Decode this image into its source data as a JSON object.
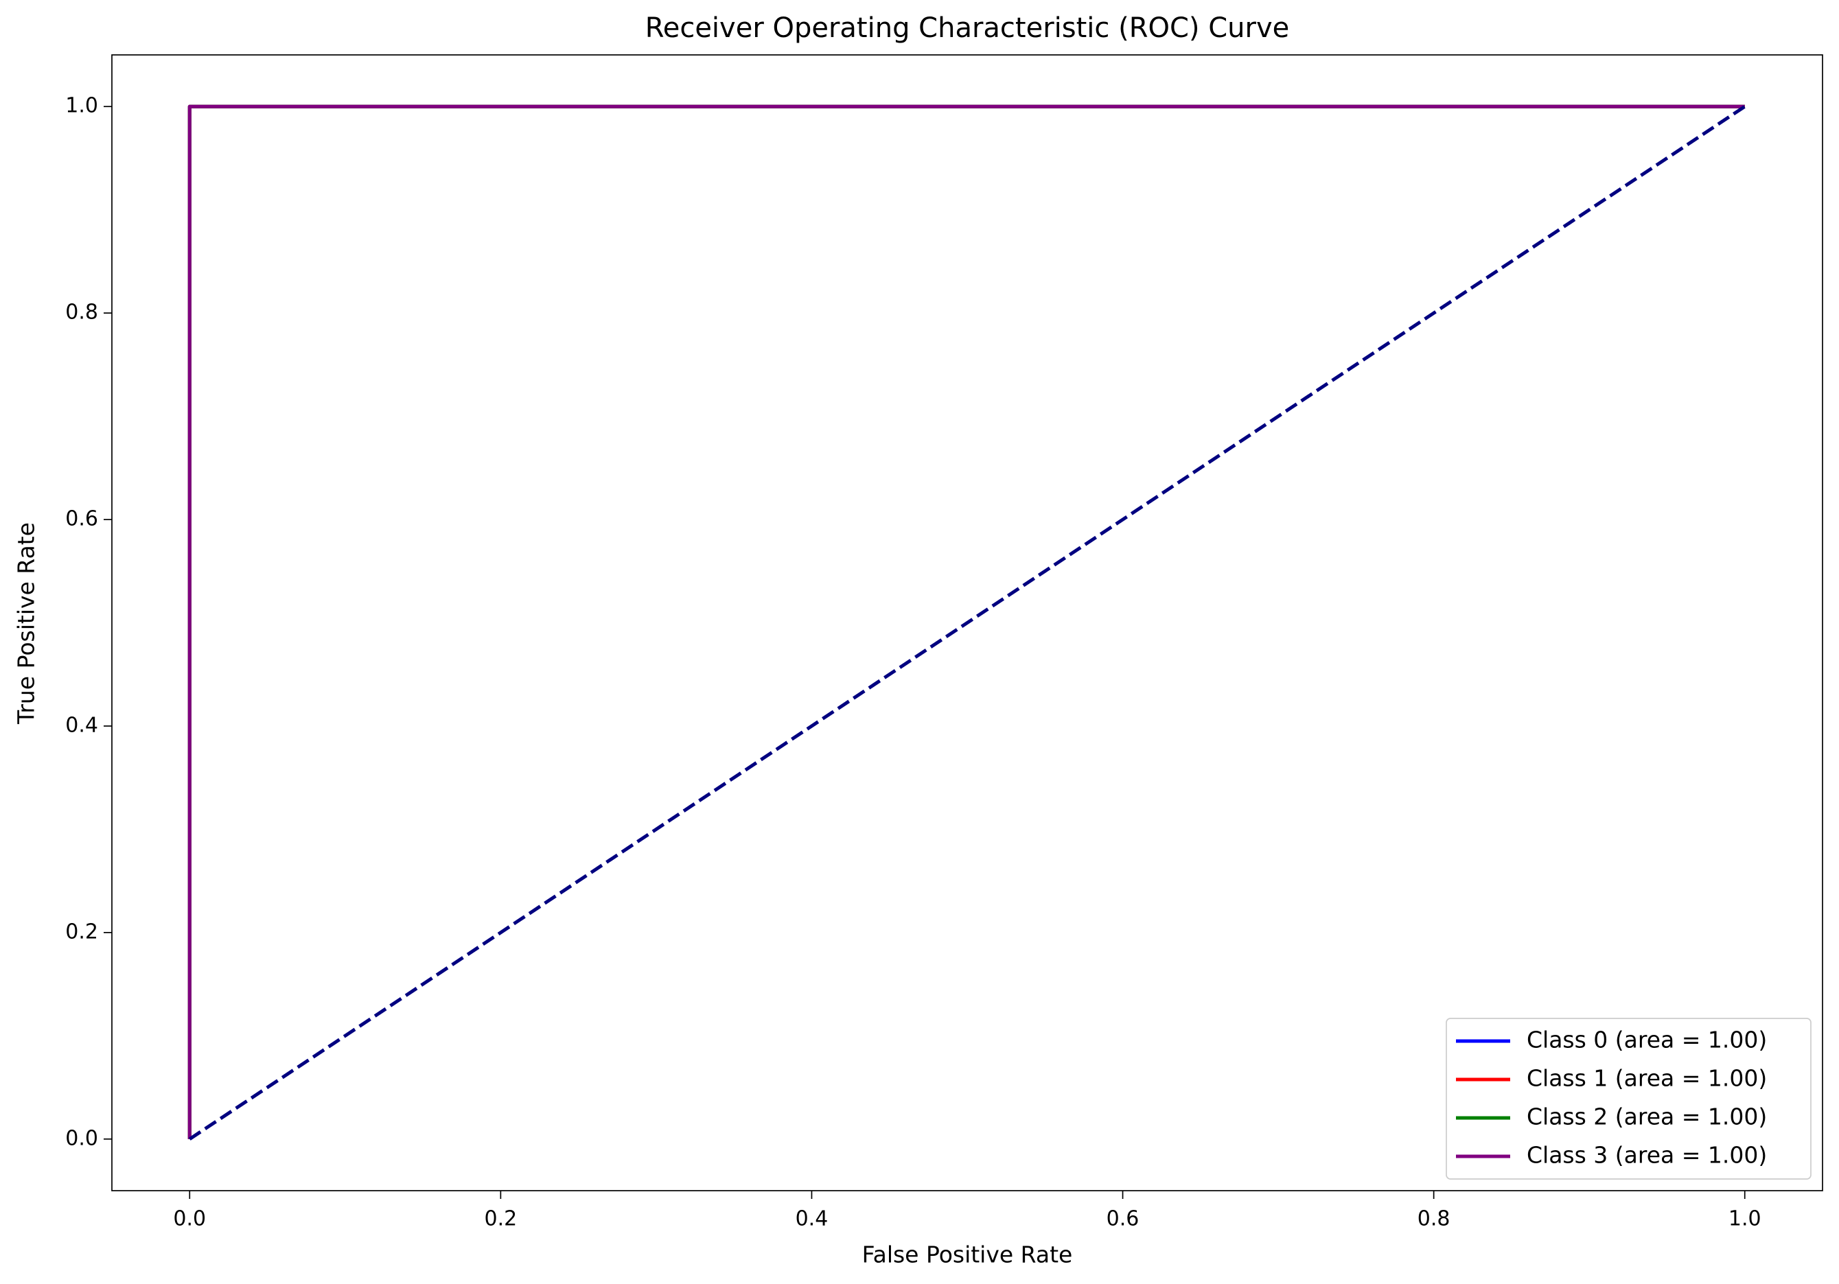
{
  "chart_data": {
    "type": "line",
    "title": "Receiver Operating Characteristic (ROC) Curve",
    "xlabel": "False Positive Rate",
    "ylabel": "True Positive Rate",
    "xlim": [
      -0.05,
      1.05
    ],
    "ylim": [
      -0.05,
      1.05
    ],
    "xticks": [
      {
        "value": 0,
        "label": "0.0"
      },
      0.2,
      0.4,
      0.6,
      0.8,
      {
        "value": 1,
        "label": "1.0"
      }
    ],
    "yticks": [
      {
        "value": 0,
        "label": "0.0"
      },
      0.2,
      0.4,
      0.6,
      0.8,
      {
        "value": 1,
        "label": "1.0"
      }
    ],
    "legend": "lower right",
    "series": [
      {
        "name": "Class 0 (area = 1.00)",
        "color": "#0000ff",
        "x": [
          0,
          0,
          1
        ],
        "values": [
          0,
          1,
          1
        ]
      },
      {
        "name": "Class 1 (area = 1.00)",
        "color": "#ff0000",
        "x": [
          0,
          0,
          1
        ],
        "values": [
          0,
          1,
          1
        ]
      },
      {
        "name": "Class 2 (area = 1.00)",
        "color": "#008000",
        "x": [
          0,
          0,
          1
        ],
        "values": [
          0,
          1,
          1
        ]
      },
      {
        "name": "Class 3 (area = 1.00)",
        "color": "#800080",
        "x": [
          0,
          0,
          1
        ],
        "values": [
          0,
          1,
          1
        ]
      },
      {
        "color": "#000080",
        "dashed": true,
        "x": [
          0,
          1
        ],
        "values": [
          0,
          1
        ]
      }
    ]
  }
}
